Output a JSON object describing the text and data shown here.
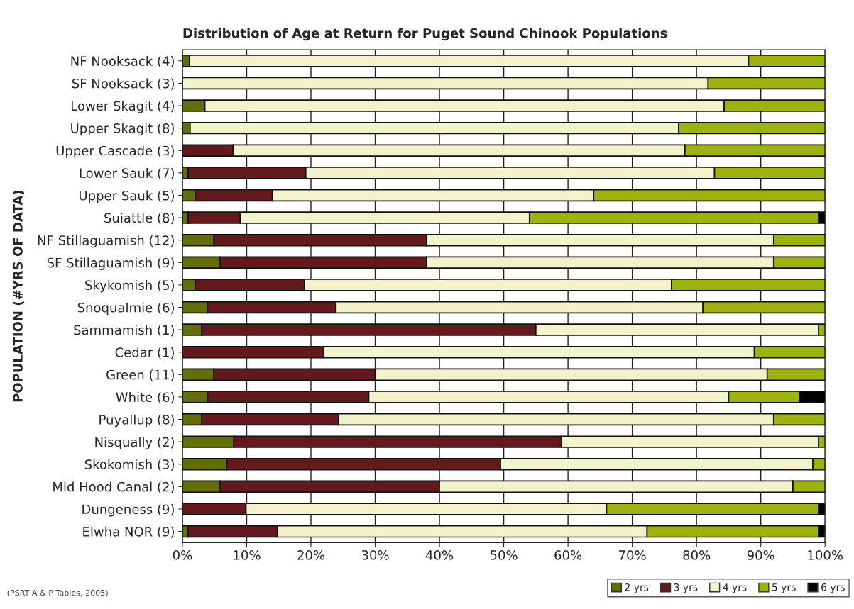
{
  "chart_data": {
    "type": "bar",
    "orientation": "horizontal",
    "stacked": true,
    "title": "Distribution of Age at Return for Puget Sound Chinook Populations",
    "ylabel": "POPULATION (#YRS OF DATA)",
    "categories": [
      "NF Nooksack (4)",
      "SF Nooksack (3)",
      "Lower Skagit (4)",
      "Upper Skagit (8)",
      "Upper Cascade (3)",
      "Lower Sauk (7)",
      "Upper Sauk (5)",
      "Suiattle (8)",
      "NF Stillaguamish (12)",
      "SF Stillaguamish (9)",
      "Skykomish (5)",
      "Snoqualmie (6)",
      "Sammamish (1)",
      "Cedar (1)",
      "Green (11)",
      "White (6)",
      "Puyallup (8)",
      "Nisqually (2)",
      "Skokomish (3)",
      "Mid Hood Canal (2)",
      "Dungeness (9)",
      "Elwha NOR (9)"
    ],
    "series": [
      {
        "name": "2 yrs",
        "color": "#636e0a",
        "values": [
          1.1,
          0,
          3.5,
          1.2,
          0,
          0.9,
          2,
          0.9,
          4.9,
          5.9,
          2,
          3.9,
          3,
          0,
          4.9,
          3.9,
          3,
          8,
          6.9,
          5.9,
          0,
          0.9
        ]
      },
      {
        "name": "3 yrs",
        "color": "#64191e",
        "values": [
          0,
          0,
          0,
          0,
          7.9,
          18.3,
          12,
          8.1,
          33.1,
          32.1,
          17,
          20,
          52,
          22,
          25.1,
          25.1,
          21.3,
          51,
          42.6,
          34.1,
          9.9,
          13.9
        ]
      },
      {
        "name": "4 yrs",
        "color": "#f3f3cb",
        "values": [
          87,
          81.8,
          80.8,
          76,
          70.3,
          63.6,
          50,
          45,
          54,
          54,
          57.1,
          57.1,
          44,
          67,
          61,
          56,
          67.7,
          40,
          48.6,
          55,
          56.1,
          57.5
        ]
      },
      {
        "name": "5 yrs",
        "color": "#9eb20f",
        "values": [
          11.9,
          18.2,
          15.7,
          22.8,
          21.8,
          17.2,
          36,
          45,
          8,
          8,
          23.9,
          19,
          1,
          11,
          9,
          11,
          8,
          1,
          1.9,
          5,
          33,
          26.7
        ]
      },
      {
        "name": "6 yrs",
        "color": "#000000",
        "values": [
          0,
          0,
          0,
          0,
          0,
          0,
          0,
          1,
          0,
          0,
          0,
          0,
          0,
          0,
          0,
          4,
          0,
          0,
          0,
          0,
          1,
          1
        ]
      }
    ],
    "xlim": [
      0,
      100
    ],
    "xticks": [
      {
        "value": 0,
        "label": "0%"
      },
      {
        "value": 10,
        "label": "10%"
      },
      {
        "value": 20,
        "label": "20%"
      },
      {
        "value": 30,
        "label": "30%"
      },
      {
        "value": 40,
        "label": "40%"
      },
      {
        "value": 50,
        "label": "50%"
      },
      {
        "value": 60,
        "label": "60%"
      },
      {
        "value": 70,
        "label": "70%"
      },
      {
        "value": 80,
        "label": "80%"
      },
      {
        "value": 90,
        "label": "90%"
      },
      {
        "value": 100,
        "label": "100%"
      }
    ],
    "grid": "x",
    "legend": "bottom right",
    "annotations": [
      "(PSRT A & P Tables, 2005)"
    ]
  }
}
